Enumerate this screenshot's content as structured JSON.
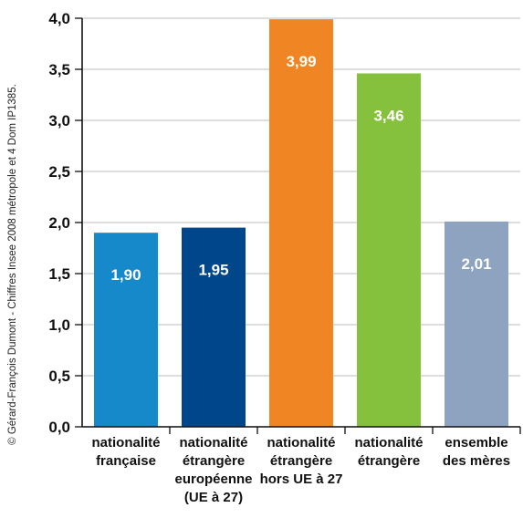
{
  "credit": "© Gérard-François Dumont - Chiffres Insee 2008 métropole et 4 Dom  IP1385.",
  "chart_data": {
    "type": "bar",
    "title": "",
    "xlabel": "",
    "ylabel": "",
    "ylim": [
      0,
      4
    ],
    "ytick_values": [
      0,
      0.5,
      1,
      1.5,
      2,
      2.5,
      3,
      3.5,
      4
    ],
    "ytick_labels": [
      "0,0",
      "0,5",
      "1,0",
      "1,5",
      "2,0",
      "2,5",
      "3,0",
      "3,5",
      "4,0"
    ],
    "grid": true,
    "categories": [
      [
        "nationalité",
        "française"
      ],
      [
        "nationalité",
        "étrangère",
        "européenne",
        "(UE à 27)"
      ],
      [
        "nationalité",
        "étrangère",
        "hors UE à 27"
      ],
      [
        "nationalité",
        "étrangère"
      ],
      [
        "ensemble",
        "des mères"
      ]
    ],
    "values": [
      1.9,
      1.95,
      3.99,
      3.46,
      2.01
    ],
    "value_labels": [
      "1,90",
      "1,95",
      "3,99",
      "3,46",
      "2,01"
    ],
    "colors": [
      "#1589c9",
      "#00468a",
      "#f08523",
      "#86c13d",
      "#8ea3c0"
    ]
  }
}
